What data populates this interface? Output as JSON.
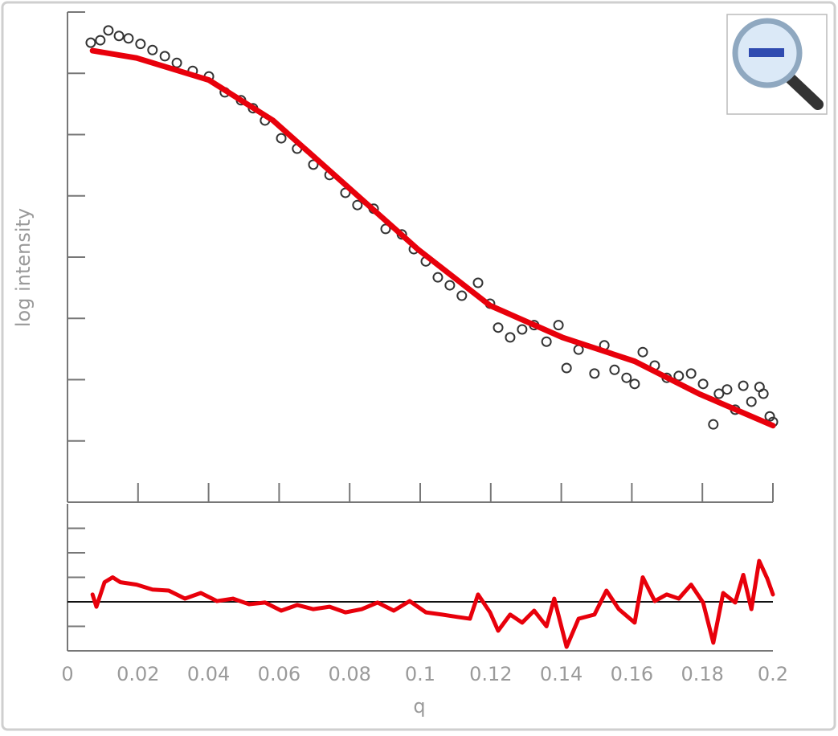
{
  "chart_data": [
    {
      "type": "scatter",
      "y_label": "log intensity",
      "xlim": [
        0,
        0.2
      ],
      "xticks": [
        0,
        0.02,
        0.04,
        0.06,
        0.08,
        0.1,
        0.12,
        0.14,
        0.16,
        0.18,
        0.2
      ],
      "ylim": [
        0,
        8
      ],
      "yticks": [
        0,
        1,
        2,
        3,
        4,
        5,
        6,
        7,
        8
      ],
      "series": [
        {
          "type": "scatter",
          "color": "#333333",
          "x": [
            0.0066,
            0.0093,
            0.0116,
            0.0146,
            0.0173,
            0.0207,
            0.0241,
            0.0276,
            0.031,
            0.0355,
            0.0401,
            0.0446,
            0.0492,
            0.0526,
            0.056,
            0.0606,
            0.0651,
            0.0697,
            0.0743,
            0.0788,
            0.0822,
            0.0868,
            0.0902,
            0.0948,
            0.0982,
            0.1016,
            0.105,
            0.1084,
            0.1118,
            0.1164,
            0.1198,
            0.1221,
            0.1255,
            0.1289,
            0.1323,
            0.1358,
            0.1392,
            0.1415,
            0.1449,
            0.1494,
            0.1522,
            0.1551,
            0.1585,
            0.1608,
            0.1631,
            0.1665,
            0.1699,
            0.1733,
            0.1768,
            0.1802,
            0.1831,
            0.1847,
            0.187,
            0.1893,
            0.1916,
            0.1939,
            0.1962,
            0.1973,
            0.1991,
            0.2
          ],
          "values": [
            7.5,
            7.54,
            7.7,
            7.61,
            7.57,
            7.48,
            7.38,
            7.28,
            7.17,
            7.04,
            6.95,
            6.69,
            6.56,
            6.43,
            6.23,
            5.94,
            5.77,
            5.51,
            5.34,
            5.05,
            4.85,
            4.79,
            4.46,
            4.37,
            4.13,
            3.93,
            3.67,
            3.54,
            3.37,
            3.58,
            3.24,
            2.85,
            2.69,
            2.82,
            2.89,
            2.62,
            2.89,
            2.19,
            2.49,
            2.1,
            2.56,
            2.16,
            2.03,
            1.93,
            2.45,
            2.23,
            2.03,
            2.06,
            2.1,
            1.93,
            1.27,
            1.77,
            1.84,
            1.51,
            1.9,
            1.64,
            1.88,
            1.77,
            1.4,
            1.31
          ]
        },
        {
          "type": "line",
          "color": "#e8000b",
          "x": [
            0.0071,
            0.0196,
            0.0401,
            0.0583,
            0.0788,
            0.0993,
            0.1198,
            0.1403,
            0.1608,
            0.179,
            0.2
          ],
          "values": [
            7.37,
            7.25,
            6.89,
            6.23,
            5.18,
            4.13,
            3.21,
            2.69,
            2.3,
            1.77,
            1.25
          ]
        }
      ]
    },
    {
      "type": "line",
      "x_label": "q",
      "xlim": [
        0,
        0.2
      ],
      "xticks": [
        0,
        0.02,
        0.04,
        0.06,
        0.08,
        0.1,
        0.12,
        0.14,
        0.16,
        0.18,
        0.2
      ],
      "ylim": [
        -2,
        4
      ],
      "yticks": [
        -2,
        -1,
        0,
        1,
        2,
        3
      ],
      "series": [
        {
          "color": "#e8000b",
          "x": [
            0.0071,
            0.0082,
            0.0105,
            0.0128,
            0.015,
            0.0196,
            0.0241,
            0.0287,
            0.0333,
            0.0378,
            0.0424,
            0.0469,
            0.0515,
            0.056,
            0.0606,
            0.0651,
            0.0697,
            0.0743,
            0.0788,
            0.0834,
            0.0879,
            0.0925,
            0.097,
            0.1016,
            0.1062,
            0.1107,
            0.1141,
            0.1164,
            0.1198,
            0.1221,
            0.1255,
            0.1289,
            0.1323,
            0.1358,
            0.138,
            0.1415,
            0.1449,
            0.1494,
            0.1528,
            0.1563,
            0.1608,
            0.1631,
            0.1665,
            0.1699,
            0.1733,
            0.1768,
            0.1802,
            0.1831,
            0.1859,
            0.1893,
            0.1916,
            0.1939,
            0.1961,
            0.1984,
            0.2
          ],
          "values": [
            0.3,
            -0.2,
            0.8,
            1.0,
            0.8,
            0.7,
            0.5,
            0.46,
            0.13,
            0.36,
            0.03,
            0.13,
            -0.1,
            -0.03,
            -0.36,
            -0.13,
            -0.3,
            -0.2,
            -0.43,
            -0.3,
            -0.03,
            -0.36,
            0.03,
            -0.43,
            -0.52,
            -0.62,
            -0.69,
            0.3,
            -0.43,
            -1.18,
            -0.52,
            -0.85,
            -0.36,
            -1.0,
            0.13,
            -1.84,
            -0.69,
            -0.52,
            0.46,
            -0.3,
            -0.85,
            1.0,
            0.03,
            0.3,
            0.13,
            0.7,
            -0.03,
            -1.67,
            0.36,
            -0.03,
            1.1,
            -0.3,
            1.67,
            0.95,
            0.3
          ]
        }
      ]
    }
  ]
}
